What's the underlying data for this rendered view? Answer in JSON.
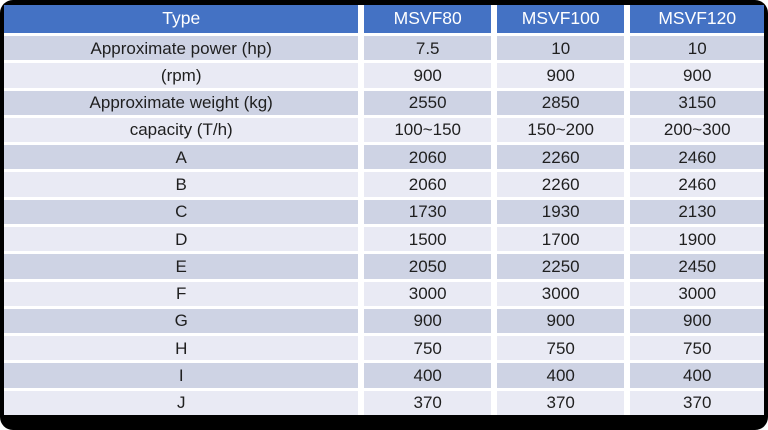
{
  "chart_data": {
    "type": "table",
    "title": "",
    "columns": [
      "Type",
      "MSVF80",
      "MSVF100",
      "MSVF120"
    ],
    "rows": [
      [
        "Approximate power (hp)",
        "7.5",
        "10",
        "10"
      ],
      [
        "(rpm)",
        "900",
        "900",
        "900"
      ],
      [
        "Approximate weight (kg)",
        "2550",
        "2850",
        "3150"
      ],
      [
        "capacity (T/h)",
        "100~150",
        "150~200",
        "200~300"
      ],
      [
        "A",
        "2060",
        "2260",
        "2460"
      ],
      [
        "B",
        "2060",
        "2260",
        "2460"
      ],
      [
        "C",
        "1730",
        "1930",
        "2130"
      ],
      [
        "D",
        "1500",
        "1700",
        "1900"
      ],
      [
        "E",
        "2050",
        "2250",
        "2450"
      ],
      [
        "F",
        "3000",
        "3000",
        "3000"
      ],
      [
        "G",
        "900",
        "900",
        "900"
      ],
      [
        "H",
        "750",
        "750",
        "750"
      ],
      [
        "I",
        "400",
        "400",
        "400"
      ],
      [
        "J",
        "370",
        "370",
        "370"
      ]
    ],
    "layout": {
      "header_position": "top",
      "banded_rows": true,
      "first_data_row_band": "dark",
      "cell_alignment": "center"
    }
  },
  "colors": {
    "frame": "#000000",
    "header_bg": "#4472C4",
    "header_text": "#FFFFFF",
    "band_dark": "#CED3E4",
    "band_light": "#E9EAF4",
    "gap": "#FFFFFF",
    "cell_text": "#1F1F1F"
  }
}
